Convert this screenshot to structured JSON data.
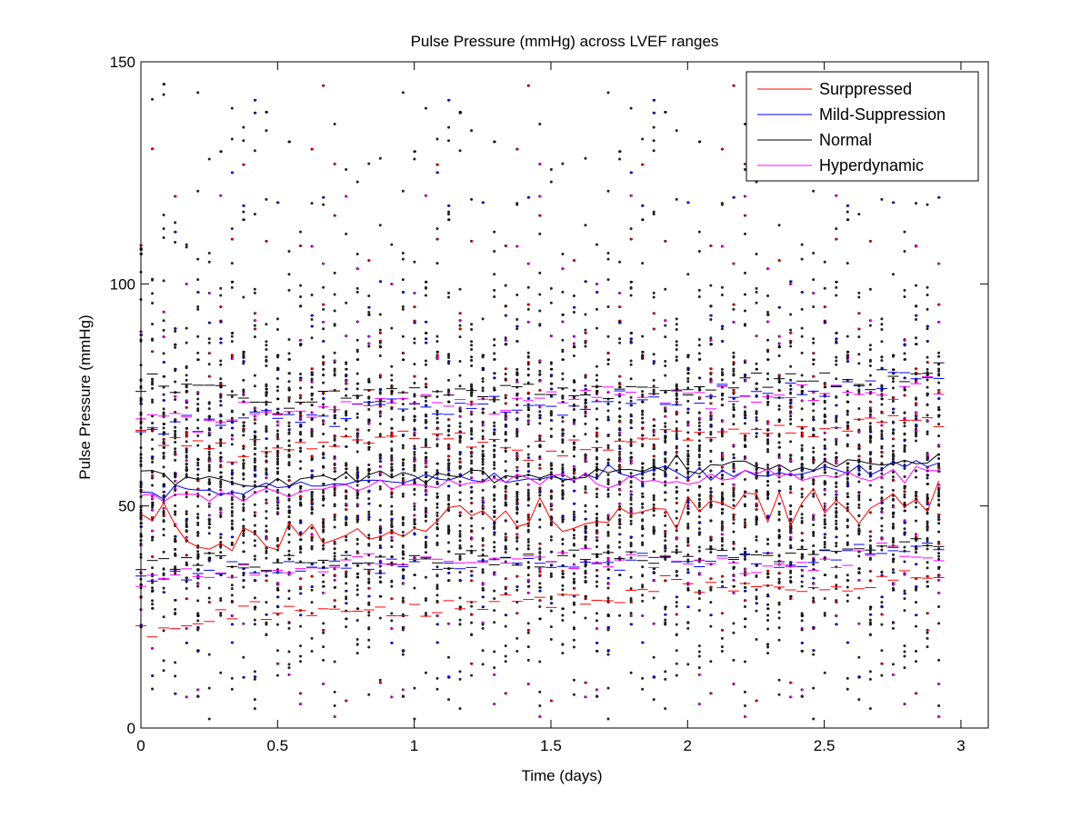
{
  "chart_data": {
    "type": "scatter",
    "title": "Pulse Pressure (mmHg) across LVEF ranges",
    "xlabel": "Time (days)",
    "ylabel": "Pulse Pressure (mmHg)",
    "xlim": [
      0,
      3.1
    ],
    "ylim": [
      0,
      150
    ],
    "xticks": [
      0,
      0.5,
      1,
      1.5,
      2,
      2.5,
      3
    ],
    "xtick_labels": [
      "0",
      "0.5",
      "1",
      "1.5",
      "2",
      "2.5",
      "3"
    ],
    "yticks": [
      0,
      50,
      100,
      150
    ],
    "ytick_labels": [
      "0",
      "50",
      "100",
      "150"
    ],
    "grid": false,
    "legend_position": "top-right",
    "colors": {
      "Surppressed": "#ff0000",
      "Mild-Suppression": "#0000ff",
      "Normal": "#000000",
      "Hyperdynamic": "#ff00ff",
      "points": "#222222"
    },
    "sample_interval_days": 0.0417,
    "point_columns": "one column of dots per hourly sample from 0 to 2.96 days, spanning roughly 0 to 125 mmHg with isolated outliers up to about 147 mmHg",
    "series": [
      {
        "name": "Surppressed",
        "color": "#ff0000",
        "mean": [
          [
            0.0,
            49
          ],
          [
            0.25,
            43
          ],
          [
            0.5,
            44
          ],
          [
            0.75,
            44
          ],
          [
            1.0,
            46
          ],
          [
            1.25,
            47
          ],
          [
            1.5,
            47
          ],
          [
            1.75,
            48
          ],
          [
            2.0,
            49
          ],
          [
            2.25,
            50
          ],
          [
            2.5,
            51
          ],
          [
            2.75,
            51
          ],
          [
            2.96,
            53
          ]
        ],
        "upper": [
          [
            0.0,
            65
          ],
          [
            0.5,
            62
          ],
          [
            1.0,
            66
          ],
          [
            1.5,
            63
          ],
          [
            2.0,
            66
          ],
          [
            2.5,
            68
          ],
          [
            2.96,
            70
          ]
        ],
        "lower": [
          [
            0.0,
            22
          ],
          [
            0.5,
            26
          ],
          [
            1.0,
            27
          ],
          [
            1.5,
            29
          ],
          [
            2.0,
            32
          ],
          [
            2.5,
            31
          ],
          [
            2.96,
            36
          ]
        ]
      },
      {
        "name": "Mild-Suppression",
        "color": "#0000ff",
        "mean": [
          [
            0.0,
            54
          ],
          [
            0.25,
            53
          ],
          [
            0.5,
            54
          ],
          [
            0.75,
            55
          ],
          [
            1.0,
            56
          ],
          [
            1.25,
            56
          ],
          [
            1.5,
            56
          ],
          [
            1.75,
            57
          ],
          [
            2.0,
            57
          ],
          [
            2.25,
            57
          ],
          [
            2.5,
            58
          ],
          [
            2.75,
            58
          ],
          [
            2.96,
            60
          ]
        ],
        "upper": [
          [
            0.0,
            67
          ],
          [
            0.5,
            70
          ],
          [
            1.0,
            72
          ],
          [
            1.5,
            73
          ],
          [
            2.0,
            74
          ],
          [
            2.5,
            76
          ],
          [
            2.96,
            79
          ]
        ],
        "lower": [
          [
            0.0,
            34
          ],
          [
            0.5,
            36
          ],
          [
            1.0,
            37
          ],
          [
            1.5,
            37
          ],
          [
            2.0,
            38
          ],
          [
            2.5,
            39
          ],
          [
            2.96,
            41
          ]
        ]
      },
      {
        "name": "Normal",
        "color": "#000000",
        "mean": [
          [
            0.0,
            58
          ],
          [
            0.25,
            55
          ],
          [
            0.5,
            55
          ],
          [
            0.75,
            56
          ],
          [
            1.0,
            57
          ],
          [
            1.25,
            57
          ],
          [
            1.5,
            57
          ],
          [
            1.75,
            58
          ],
          [
            2.0,
            59
          ],
          [
            2.25,
            59
          ],
          [
            2.5,
            59
          ],
          [
            2.75,
            59
          ],
          [
            2.96,
            61
          ]
        ],
        "upper": [
          [
            0.0,
            78
          ],
          [
            0.5,
            74
          ],
          [
            1.0,
            76
          ],
          [
            1.5,
            76
          ],
          [
            2.0,
            77
          ],
          [
            2.5,
            78
          ],
          [
            2.96,
            80
          ]
        ],
        "lower": [
          [
            0.0,
            37
          ],
          [
            0.5,
            37
          ],
          [
            1.0,
            38
          ],
          [
            1.5,
            38
          ],
          [
            2.0,
            39
          ],
          [
            2.5,
            40
          ],
          [
            2.96,
            42
          ]
        ]
      },
      {
        "name": "Hyperdynamic",
        "color": "#ff00ff",
        "mean": [
          [
            0.0,
            52
          ],
          [
            0.25,
            52
          ],
          [
            0.5,
            53
          ],
          [
            0.75,
            54
          ],
          [
            1.0,
            55
          ],
          [
            1.25,
            55
          ],
          [
            1.5,
            56
          ],
          [
            1.75,
            56
          ],
          [
            2.0,
            56
          ],
          [
            2.25,
            57
          ],
          [
            2.5,
            57
          ],
          [
            2.75,
            57
          ],
          [
            2.96,
            59
          ]
        ],
        "upper": [
          [
            0.0,
            70
          ],
          [
            0.5,
            71
          ],
          [
            1.0,
            73
          ],
          [
            1.5,
            74
          ],
          [
            2.0,
            75
          ],
          [
            2.5,
            75
          ],
          [
            2.96,
            77
          ]
        ],
        "lower": [
          [
            0.0,
            33
          ],
          [
            0.5,
            36
          ],
          [
            1.0,
            38
          ],
          [
            1.5,
            38
          ],
          [
            2.0,
            38
          ],
          [
            2.5,
            38
          ],
          [
            2.96,
            40
          ]
        ]
      }
    ]
  }
}
